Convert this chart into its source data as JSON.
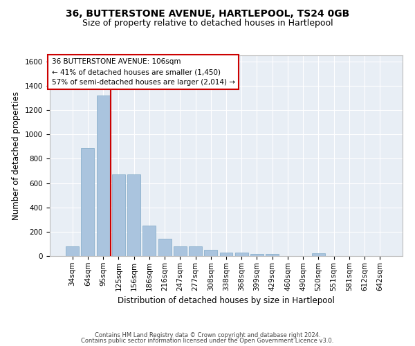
{
  "title": "36, BUTTERSTONE AVENUE, HARTLEPOOL, TS24 0GB",
  "subtitle": "Size of property relative to detached houses in Hartlepool",
  "xlabel": "Distribution of detached houses by size in Hartlepool",
  "ylabel": "Number of detached properties",
  "categories": [
    "34sqm",
    "64sqm",
    "95sqm",
    "125sqm",
    "156sqm",
    "186sqm",
    "216sqm",
    "247sqm",
    "277sqm",
    "308sqm",
    "338sqm",
    "368sqm",
    "399sqm",
    "429sqm",
    "460sqm",
    "490sqm",
    "520sqm",
    "551sqm",
    "581sqm",
    "612sqm",
    "642sqm"
  ],
  "values": [
    80,
    885,
    1320,
    670,
    670,
    250,
    145,
    80,
    80,
    50,
    30,
    30,
    15,
    15,
    0,
    0,
    20,
    0,
    0,
    0,
    0
  ],
  "bar_color": "#aac4de",
  "bar_edgecolor": "#8ab0cc",
  "vline_color": "#cc0000",
  "vline_x_index": 2,
  "annotation_text": "36 BUTTERSTONE AVENUE: 106sqm\n← 41% of detached houses are smaller (1,450)\n57% of semi-detached houses are larger (2,014) →",
  "annotation_box_edgecolor": "#cc0000",
  "annotation_box_facecolor": "white",
  "ylim": [
    0,
    1650
  ],
  "yticks": [
    0,
    200,
    400,
    600,
    800,
    1000,
    1200,
    1400,
    1600
  ],
  "bg_color": "#e8eef5",
  "grid_color": "white",
  "footer_line1": "Contains HM Land Registry data © Crown copyright and database right 2024.",
  "footer_line2": "Contains public sector information licensed under the Open Government Licence v3.0.",
  "title_fontsize": 10,
  "subtitle_fontsize": 9,
  "xlabel_fontsize": 8.5,
  "ylabel_fontsize": 8.5,
  "tick_fontsize": 7.5,
  "annotation_fontsize": 7.5,
  "footer_fontsize": 6
}
